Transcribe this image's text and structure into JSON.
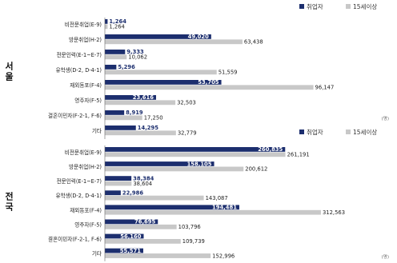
{
  "colors": {
    "employed": "#1c2e6e",
    "pop15": "#c8c8c8"
  },
  "chart_data": [
    {
      "type": "bar",
      "orientation": "horizontal",
      "region_label": "서울",
      "unit_label": "(명)",
      "categories": [
        "비전문취업(E-9)",
        "방문취업(H-2)",
        "전문인력(E-1~E-7)",
        "유학생(D-2, D-4-1)",
        "재외동포(F-4)",
        "영주자(F-5)",
        "결혼이민자(F-2-1, F-6)",
        "기타"
      ],
      "series": [
        {
          "name": "취업자",
          "values": [
            1264,
            49020,
            9333,
            5296,
            53705,
            23616,
            8919,
            14295
          ],
          "labels": [
            "1,264",
            "49,020",
            "9,333",
            "5,296",
            "53,705",
            "23,616",
            "8,919",
            "14,295"
          ]
        },
        {
          "name": "15세이상",
          "values": [
            1264,
            63438,
            10062,
            51559,
            96147,
            32503,
            17250,
            32779
          ],
          "labels": [
            "1,264",
            "63,438",
            "10,062",
            "51,559",
            "96,147",
            "32,503",
            "17,250",
            "32,779"
          ]
        }
      ],
      "xlim": [
        0,
        100000
      ],
      "legend": "top-right"
    },
    {
      "type": "bar",
      "orientation": "horizontal",
      "region_label": "전국",
      "unit_label": "(명)",
      "categories": [
        "비전문취업(E-9)",
        "방문취업(H-2)",
        "전문인력(E-1~E-7)",
        "유학생(D-2, D-4-1)",
        "재외동포(F-4)",
        "영주자(F-5)",
        "결혼이민자(F-2-1, F-6)",
        "기타"
      ],
      "series": [
        {
          "name": "취업자",
          "values": [
            260835,
            158105,
            38384,
            22986,
            194481,
            76695,
            56160,
            55571
          ],
          "labels": [
            "260,835",
            "158,105",
            "38,384",
            "22,986",
            "194,481",
            "76,695",
            "56,160",
            "55,571"
          ]
        },
        {
          "name": "15세이상",
          "values": [
            261191,
            200612,
            38604,
            143087,
            312563,
            103796,
            109739,
            152996
          ],
          "labels": [
            "261,191",
            "200,612",
            "38,604",
            "143,087",
            "312,563",
            "103,796",
            "109,739",
            "152,996"
          ]
        }
      ],
      "xlim": [
        0,
        330000
      ],
      "legend": "top-right"
    }
  ]
}
